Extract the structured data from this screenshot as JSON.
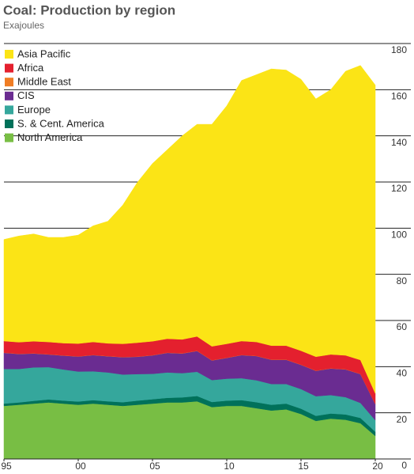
{
  "chart_data": {
    "type": "stacked-area",
    "title": "Coal: Production by region",
    "subtitle": "Exajoules",
    "x": [
      1995,
      1996,
      1997,
      1998,
      1999,
      2000,
      2001,
      2002,
      2003,
      2004,
      2005,
      2006,
      2007,
      2008,
      2009,
      2010,
      2011,
      2012,
      2013,
      2014,
      2015,
      2016,
      2017,
      2018,
      2019,
      2020
    ],
    "series": [
      {
        "name": "North America",
        "color": "#78be44",
        "values": [
          23,
          23.5,
          24,
          24.5,
          24,
          23.5,
          24,
          23.5,
          23,
          23.5,
          24,
          24.5,
          24.5,
          25,
          22.5,
          23,
          23,
          22,
          21,
          21.5,
          19.5,
          16.5,
          17.5,
          17,
          15.5,
          10
        ]
      },
      {
        "name": "S. & Cent. America",
        "color": "#00715a",
        "values": [
          1,
          1,
          1.2,
          1.3,
          1.3,
          1.4,
          1.5,
          1.5,
          1.6,
          1.8,
          1.9,
          2,
          2.2,
          2.3,
          2.2,
          2.3,
          2.5,
          2.6,
          2.5,
          2.5,
          2.3,
          2.2,
          2.2,
          2.3,
          2.3,
          1.8
        ]
      },
      {
        "name": "Europe",
        "color": "#35a79c",
        "values": [
          15,
          14.5,
          14.5,
          14,
          13.5,
          13,
          12.5,
          12.5,
          12,
          11.5,
          11,
          11,
          10.5,
          10.5,
          9.5,
          9.5,
          9.5,
          9.5,
          9,
          8.5,
          8.5,
          8.5,
          8,
          7.5,
          6.5,
          5
        ]
      },
      {
        "name": "CIS",
        "color": "#6a2c91",
        "values": [
          7,
          6.5,
          6,
          5.5,
          6,
          6.5,
          7,
          7,
          7.5,
          7.5,
          8,
          8.5,
          8.5,
          9,
          8.5,
          9,
          10,
          10.5,
          10.5,
          10.5,
          10.5,
          11,
          11.5,
          12,
          12.5,
          7
        ]
      },
      {
        "name": "Middle East",
        "color": "#f07d24",
        "values": [
          0.1,
          0.1,
          0.1,
          0.1,
          0.1,
          0.1,
          0.1,
          0.1,
          0.1,
          0.1,
          0.1,
          0.1,
          0.1,
          0.1,
          0.1,
          0.1,
          0.1,
          0.1,
          0.1,
          0.1,
          0.1,
          0.1,
          0.1,
          0.1,
          0.1,
          0.1
        ]
      },
      {
        "name": "Africa",
        "color": "#e4202e",
        "values": [
          5,
          5,
          5.2,
          5.3,
          5.3,
          5.5,
          5.6,
          5.5,
          5.7,
          6,
          6,
          6,
          6,
          6.2,
          6,
          6,
          6,
          6,
          6,
          6,
          6,
          6,
          6,
          6,
          6,
          4.5
        ]
      },
      {
        "name": "Asia Pacific",
        "color": "#fbe416",
        "values": [
          44,
          46,
          46.5,
          45.3,
          45.8,
          47,
          50.3,
          52.9,
          60.1,
          69.6,
          77,
          81.9,
          88.2,
          91.9,
          96.2,
          103.1,
          112.9,
          115.8,
          119.9,
          119.4,
          117.6,
          111.7,
          114.7,
          123.1,
          127.6,
          133.6
        ]
      }
    ],
    "xlim": [
      1995,
      2020
    ],
    "xticks": [
      {
        "value": 1995,
        "label": "95"
      },
      {
        "value": 2000,
        "label": "00"
      },
      {
        "value": 2005,
        "label": "05"
      },
      {
        "value": 2010,
        "label": "10"
      },
      {
        "value": 2015,
        "label": "15"
      },
      {
        "value": 2020,
        "label": "20"
      }
    ],
    "ylim": [
      0,
      180
    ],
    "yticks": [
      0,
      20,
      40,
      60,
      80,
      100,
      120,
      140,
      160,
      180
    ],
    "grid": true
  }
}
